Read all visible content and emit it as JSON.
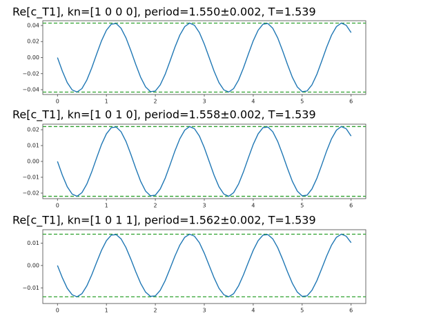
{
  "chart_data": [
    {
      "type": "line",
      "title": "Re[c_T1], kn=[1 0 0 0], period=1.550±0.002, T=1.539",
      "x": [
        0,
        0.1,
        0.2,
        0.3,
        0.4,
        0.5,
        0.6,
        0.7,
        0.8,
        0.9,
        1,
        1.1,
        1.2,
        1.3,
        1.4,
        1.5,
        1.6,
        1.7,
        1.8,
        1.9,
        2,
        2.1,
        2.2,
        2.3,
        2.4,
        2.5,
        2.6,
        2.7,
        2.8,
        2.9,
        3,
        3.1,
        3.2,
        3.3,
        3.4,
        3.5,
        3.6,
        3.7,
        3.8,
        3.9,
        4,
        4.1,
        4.2,
        4.3,
        4.4,
        4.5,
        4.6,
        4.7,
        4.8,
        4.9,
        5,
        5.1,
        5.2,
        5.3,
        5.4,
        5.5,
        5.6,
        5.7,
        5.8,
        5.9,
        6
      ],
      "values": [
        0,
        -0.0169,
        -0.0312,
        -0.0403,
        -0.0429,
        -0.0386,
        -0.028,
        -0.0129,
        0.0043,
        0.0209,
        0.0341,
        0.0417,
        0.0425,
        0.0365,
        0.0246,
        0.0086,
        -0.0086,
        -0.0246,
        -0.0365,
        -0.0425,
        -0.0416,
        -0.034,
        -0.0209,
        -0.0043,
        0.0129,
        0.028,
        0.0386,
        0.043,
        0.0403,
        0.0312,
        0.0169,
        0,
        -0.0169,
        -0.0312,
        -0.0403,
        -0.0429,
        -0.0386,
        -0.028,
        -0.0129,
        0.0043,
        0.0209,
        0.0341,
        0.0417,
        0.0425,
        0.0365,
        0.0246,
        0.0086,
        -0.0086,
        -0.0246,
        -0.0365,
        -0.0425,
        -0.0416,
        -0.034,
        -0.0209,
        -0.0043,
        0.0129,
        0.028,
        0.0386,
        0.043,
        0.0403,
        0.0312
      ],
      "color": "#1f77b4",
      "hlines": [
        0.043,
        -0.043
      ],
      "hline_color": "#2ca02c",
      "xlim": [
        -0.3,
        6.3
      ],
      "xticks": [
        0,
        1,
        2,
        3,
        4,
        5,
        6
      ],
      "ylim": [
        -0.046,
        0.046
      ],
      "yticks": [
        {
          "value": 0.04,
          "label": "0.04"
        },
        {
          "value": 0.02,
          "label": "0.02"
        },
        {
          "value": 0,
          "label": "0.00"
        },
        {
          "value": -0.02,
          "label": "−0.02"
        },
        {
          "value": -0.04,
          "label": "−0.04"
        }
      ]
    },
    {
      "type": "line",
      "title": "Re[c_T1], kn=[1 0 1 0], period=1.558±0.002, T=1.539",
      "x": [
        0,
        0.1,
        0.2,
        0.3,
        0.4,
        0.5,
        0.6,
        0.7,
        0.8,
        0.9,
        1,
        1.1,
        1.2,
        1.3,
        1.4,
        1.5,
        1.6,
        1.7,
        1.8,
        1.9,
        2,
        2.1,
        2.2,
        2.3,
        2.4,
        2.5,
        2.6,
        2.7,
        2.8,
        2.9,
        3,
        3.1,
        3.2,
        3.3,
        3.4,
        3.5,
        3.6,
        3.7,
        3.8,
        3.9,
        4,
        4.1,
        4.2,
        4.3,
        4.4,
        4.5,
        4.6,
        4.7,
        4.8,
        4.9,
        5,
        5.1,
        5.2,
        5.3,
        5.4,
        5.5,
        5.6,
        5.7,
        5.8,
        5.9,
        6
      ],
      "values": [
        0,
        -0.0087,
        -0.016,
        -0.0206,
        -0.022,
        -0.0197,
        -0.0143,
        -0.0066,
        0.0022,
        0.0107,
        0.0174,
        0.0213,
        0.0217,
        0.0187,
        0.0126,
        0.0044,
        -0.0044,
        -0.0126,
        -0.0187,
        -0.0217,
        -0.0213,
        -0.0174,
        -0.0107,
        -0.0022,
        0.0066,
        0.0143,
        0.0197,
        0.022,
        0.0206,
        0.016,
        0.0087,
        0,
        -0.0087,
        -0.016,
        -0.0206,
        -0.022,
        -0.0197,
        -0.0143,
        -0.0066,
        0.0022,
        0.0107,
        0.0174,
        0.0213,
        0.0217,
        0.0187,
        0.0126,
        0.0044,
        -0.0044,
        -0.0126,
        -0.0187,
        -0.0217,
        -0.0213,
        -0.0174,
        -0.0107,
        -0.0022,
        0.0066,
        0.0143,
        0.0197,
        0.022,
        0.0206,
        0.016
      ],
      "color": "#1f77b4",
      "hlines": [
        0.022,
        -0.022
      ],
      "hline_color": "#2ca02c",
      "xlim": [
        -0.3,
        6.3
      ],
      "xticks": [
        0,
        1,
        2,
        3,
        4,
        5,
        6
      ],
      "ylim": [
        -0.0235,
        0.0235
      ],
      "yticks": [
        {
          "value": 0.02,
          "label": "0.02"
        },
        {
          "value": 0.01,
          "label": "0.01"
        },
        {
          "value": 0,
          "label": "0.00"
        },
        {
          "value": -0.01,
          "label": "−0.01"
        },
        {
          "value": -0.02,
          "label": "−0.02"
        }
      ]
    },
    {
      "type": "line",
      "title": "Re[c_T1], kn=[1 0 1 1], period=1.562±0.002, T=1.539",
      "x": [
        0,
        0.1,
        0.2,
        0.3,
        0.4,
        0.5,
        0.6,
        0.7,
        0.8,
        0.9,
        1,
        1.1,
        1.2,
        1.3,
        1.4,
        1.5,
        1.6,
        1.7,
        1.8,
        1.9,
        2,
        2.1,
        2.2,
        2.3,
        2.4,
        2.5,
        2.6,
        2.7,
        2.8,
        2.9,
        3,
        3.1,
        3.2,
        3.3,
        3.4,
        3.5,
        3.6,
        3.7,
        3.8,
        3.9,
        4,
        4.1,
        4.2,
        4.3,
        4.4,
        4.5,
        4.6,
        4.7,
        4.8,
        4.9,
        5,
        5.1,
        5.2,
        5.3,
        5.4,
        5.5,
        5.6,
        5.7,
        5.8,
        5.9,
        6
      ],
      "values": [
        0,
        -0.0055,
        -0.0102,
        -0.0131,
        -0.014,
        -0.0126,
        -0.0091,
        -0.0042,
        0.0014,
        0.0068,
        0.0111,
        0.0136,
        0.0138,
        0.0119,
        0.008,
        0.0028,
        -0.0028,
        -0.008,
        -0.0119,
        -0.0138,
        -0.0136,
        -0.0111,
        -0.0068,
        -0.0014,
        0.0042,
        0.0091,
        0.0126,
        0.014,
        0.0131,
        0.0102,
        0.0055,
        0,
        -0.0055,
        -0.0102,
        -0.0131,
        -0.014,
        -0.0126,
        -0.0091,
        -0.0042,
        0.0014,
        0.0068,
        0.0111,
        0.0136,
        0.0138,
        0.0119,
        0.008,
        0.0028,
        -0.0028,
        -0.008,
        -0.0119,
        -0.0138,
        -0.0136,
        -0.0111,
        -0.0068,
        -0.0014,
        0.0042,
        0.0091,
        0.0126,
        0.014,
        0.0131,
        0.0102
      ],
      "color": "#1f77b4",
      "hlines": [
        0.014,
        -0.014
      ],
      "hline_color": "#2ca02c",
      "xlim": [
        -0.3,
        6.3
      ],
      "xticks": [
        0,
        1,
        2,
        3,
        4,
        5,
        6
      ],
      "ylim": [
        -0.017,
        0.016
      ],
      "yticks": [
        {
          "value": 0.01,
          "label": "0.01"
        },
        {
          "value": 0,
          "label": "0.00"
        },
        {
          "value": -0.01,
          "label": "−0.01"
        }
      ]
    }
  ]
}
